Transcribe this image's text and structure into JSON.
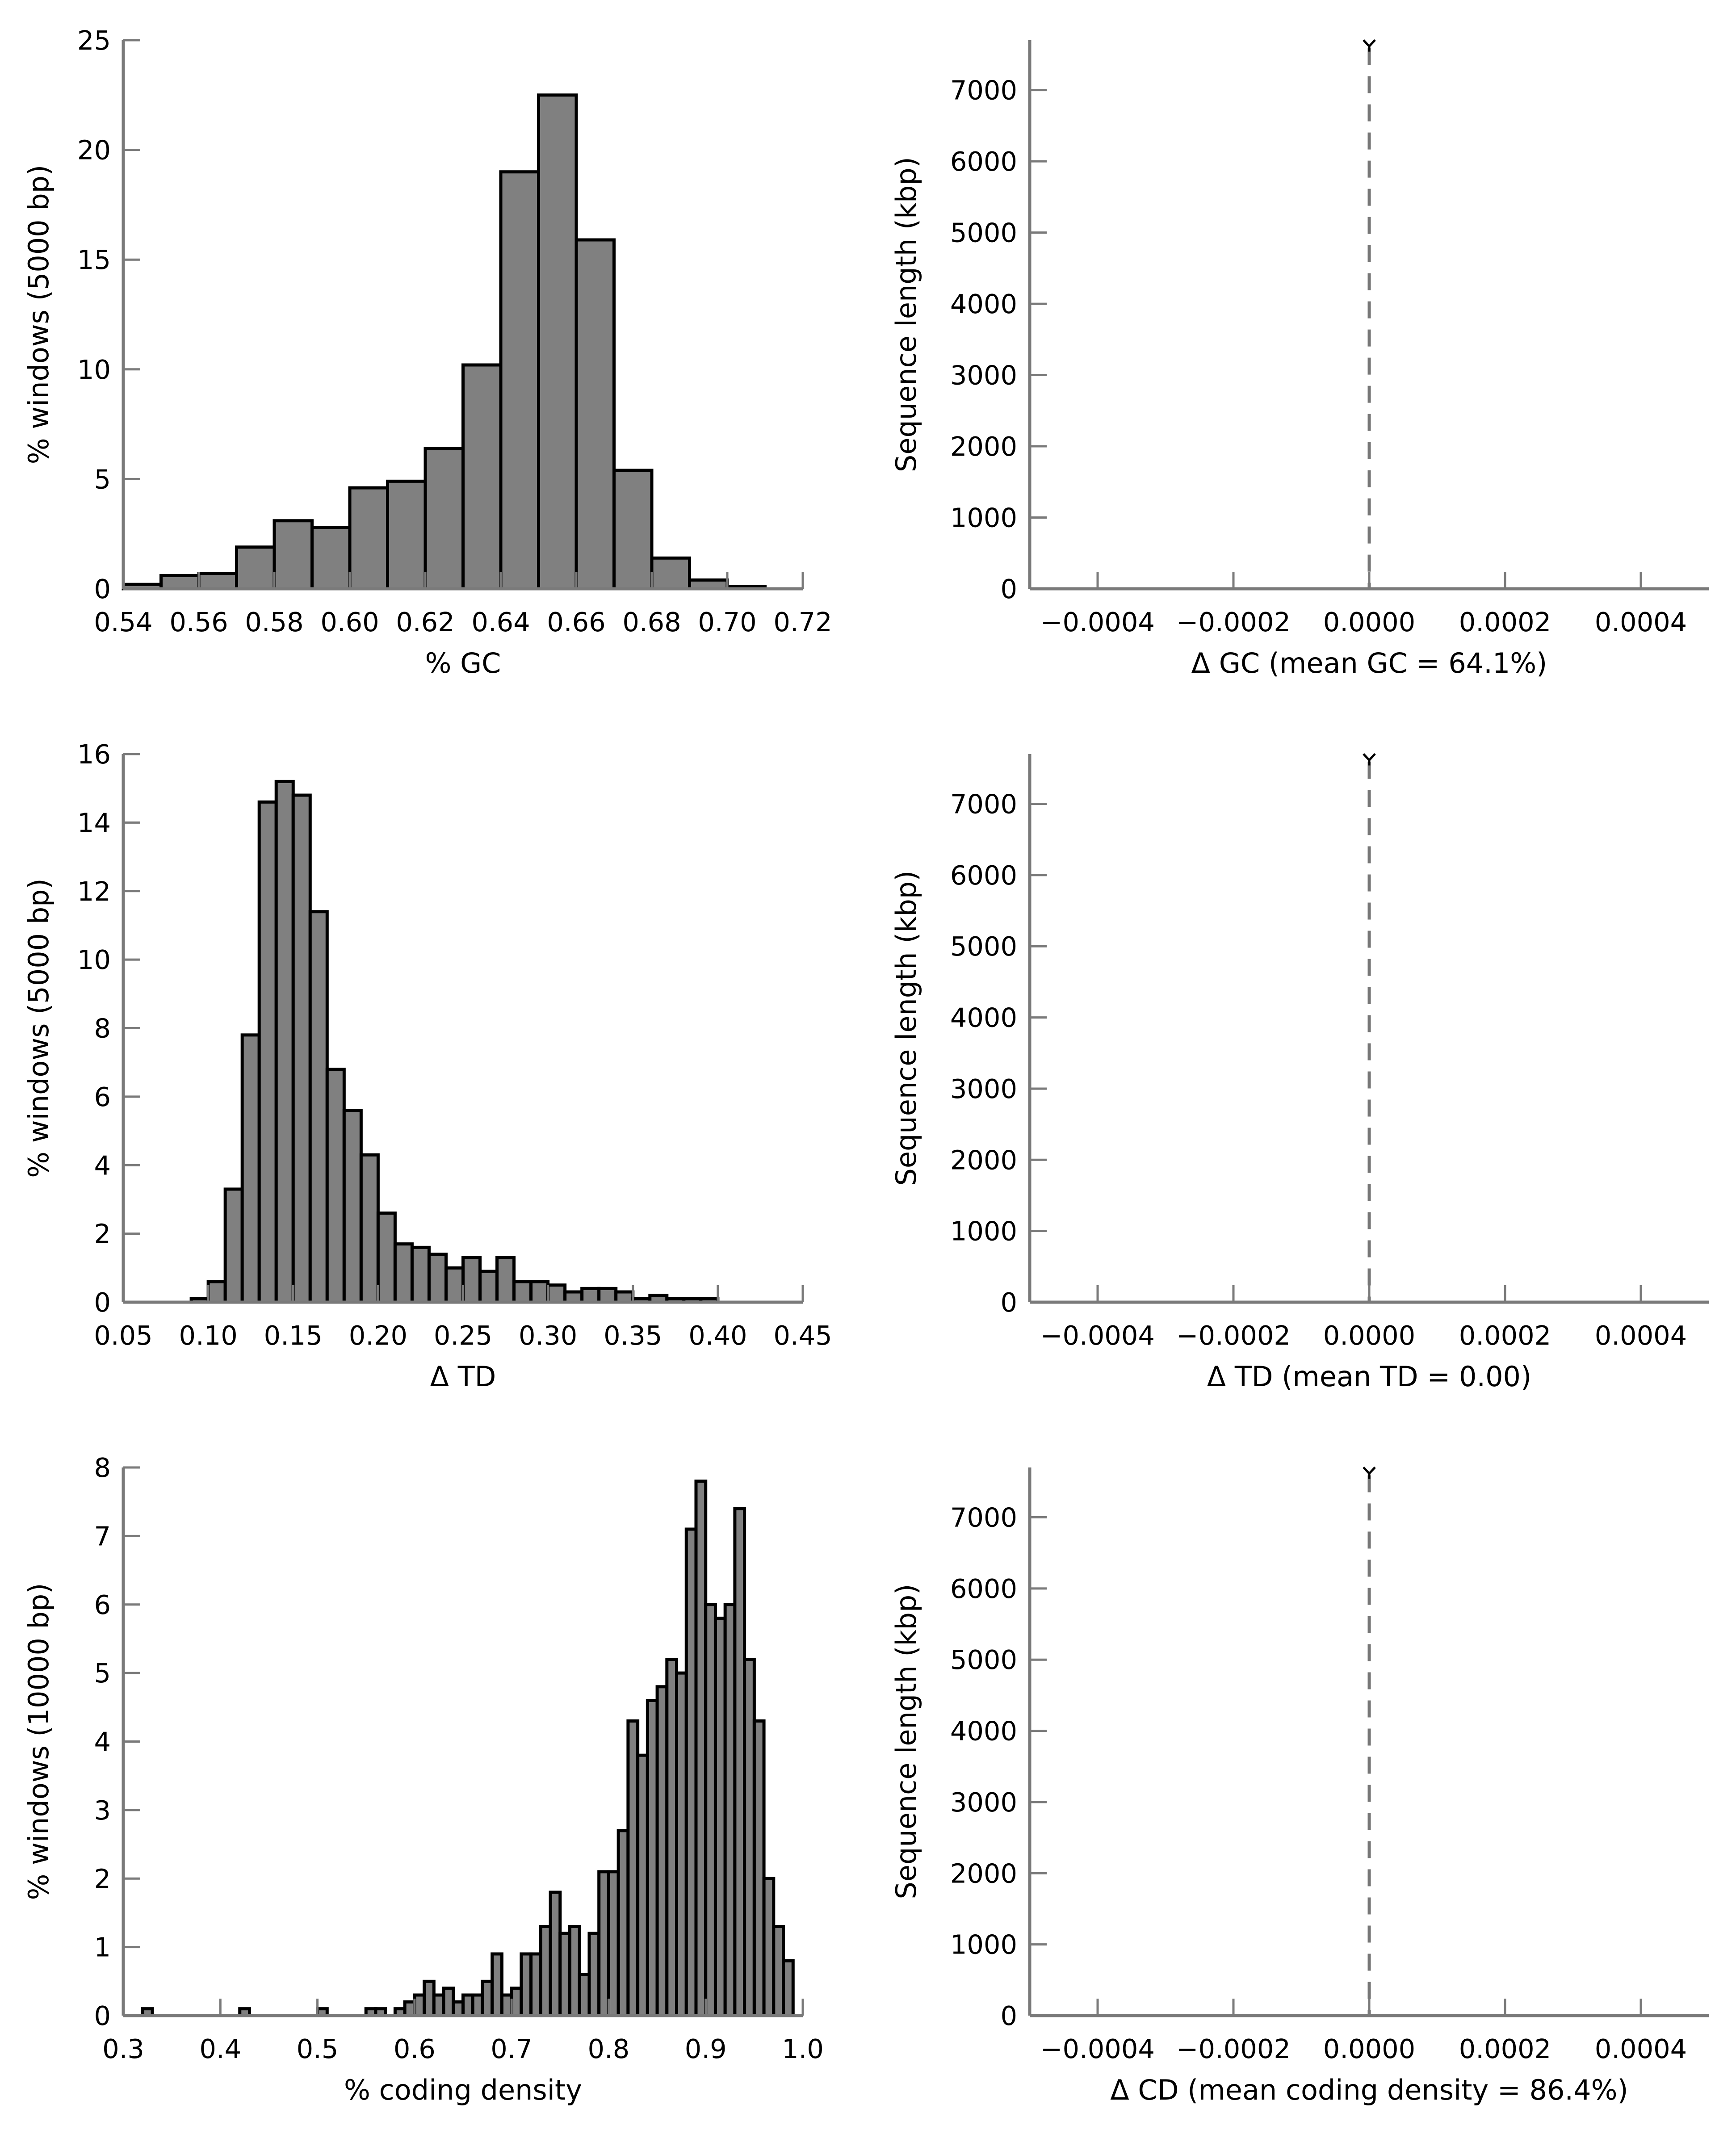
{
  "chart_data": [
    {
      "type": "bar",
      "xlabel": "% GC",
      "ylabel": "% windows (5000 bp)",
      "xlim": [
        0.54,
        0.72
      ],
      "ylim": [
        0,
        25
      ],
      "xticks": [
        "0.54",
        "0.56",
        "0.58",
        "0.60",
        "0.62",
        "0.64",
        "0.66",
        "0.68",
        "0.70",
        "0.72"
      ],
      "yticks": [
        "0",
        "5",
        "10",
        "15",
        "20",
        "25"
      ],
      "bin_edges": [
        0.54,
        0.55,
        0.56,
        0.57,
        0.58,
        0.59,
        0.6,
        0.61,
        0.62,
        0.63,
        0.64,
        0.65,
        0.66,
        0.67,
        0.68,
        0.69,
        0.7,
        0.71
      ],
      "values": [
        0.2,
        0.6,
        0.7,
        1.9,
        3.1,
        2.8,
        4.6,
        4.9,
        6.4,
        10.2,
        19.0,
        22.5,
        15.9,
        5.4,
        1.4,
        0.4,
        0.1
      ]
    },
    {
      "type": "line",
      "xlabel": "Δ GC (mean GC = 64.1%)",
      "ylabel": "Sequence length (kbp)",
      "xlim": [
        -0.0005,
        0.0005
      ],
      "ylim": [
        0,
        7700
      ],
      "xticks": [
        "−0.0004",
        "−0.0002",
        "0.0000",
        "0.0002",
        "0.0004"
      ],
      "xtick_values": [
        -0.0004,
        -0.0002,
        0.0,
        0.0002,
        0.0004
      ],
      "yticks": [
        "0",
        "1000",
        "2000",
        "3000",
        "4000",
        "5000",
        "6000",
        "7000"
      ],
      "reference_line_x": 0.0,
      "point": {
        "x": 0.0,
        "y": 7640
      }
    },
    {
      "type": "bar",
      "xlabel": "Δ TD",
      "ylabel": "% windows (5000 bp)",
      "xlim": [
        0.05,
        0.45
      ],
      "ylim": [
        0,
        16
      ],
      "xticks": [
        "0.05",
        "0.10",
        "0.15",
        "0.20",
        "0.25",
        "0.30",
        "0.35",
        "0.40",
        "0.45"
      ],
      "yticks": [
        "0",
        "2",
        "4",
        "6",
        "8",
        "10",
        "12",
        "14",
        "16"
      ],
      "bin_edges": [
        0.09,
        0.1,
        0.11,
        0.12,
        0.13,
        0.14,
        0.15,
        0.16,
        0.17,
        0.18,
        0.19,
        0.2,
        0.21,
        0.22,
        0.23,
        0.24,
        0.25,
        0.26,
        0.27,
        0.28,
        0.29,
        0.3,
        0.31,
        0.32,
        0.33,
        0.34,
        0.35,
        0.36,
        0.37,
        0.38,
        0.39,
        0.4
      ],
      "values": [
        0.1,
        0.6,
        3.3,
        7.8,
        14.6,
        15.2,
        14.8,
        11.4,
        6.8,
        5.6,
        4.3,
        2.6,
        1.7,
        1.6,
        1.4,
        1.0,
        1.3,
        0.9,
        1.3,
        0.6,
        0.6,
        0.5,
        0.3,
        0.4,
        0.4,
        0.3,
        0.1,
        0.2,
        0.1,
        0.1,
        0.1
      ]
    },
    {
      "type": "line",
      "xlabel": "Δ TD (mean TD = 0.00)",
      "ylabel": "Sequence length (kbp)",
      "xlim": [
        -0.0005,
        0.0005
      ],
      "ylim": [
        0,
        7700
      ],
      "xticks": [
        "−0.0004",
        "−0.0002",
        "0.0000",
        "0.0002",
        "0.0004"
      ],
      "xtick_values": [
        -0.0004,
        -0.0002,
        0.0,
        0.0002,
        0.0004
      ],
      "yticks": [
        "0",
        "1000",
        "2000",
        "3000",
        "4000",
        "5000",
        "6000",
        "7000"
      ],
      "reference_line_x": 0.0,
      "point": {
        "x": 0.0,
        "y": 7640
      }
    },
    {
      "type": "bar",
      "xlabel": "% coding density",
      "ylabel": "% windows (10000 bp)",
      "xlim": [
        0.3,
        1.0
      ],
      "ylim": [
        0,
        8
      ],
      "xticks": [
        "0.3",
        "0.4",
        "0.5",
        "0.6",
        "0.7",
        "0.8",
        "0.9",
        "1.0"
      ],
      "yticks": [
        "0",
        "1",
        "2",
        "3",
        "4",
        "5",
        "6",
        "7",
        "8"
      ],
      "bin_width": 0.01,
      "bins": [
        [
          0.32,
          0.1
        ],
        [
          0.42,
          0.1
        ],
        [
          0.5,
          0.1
        ],
        [
          0.55,
          0.1
        ],
        [
          0.56,
          0.1
        ],
        [
          0.58,
          0.1
        ],
        [
          0.59,
          0.2
        ],
        [
          0.6,
          0.3
        ],
        [
          0.61,
          0.5
        ],
        [
          0.62,
          0.3
        ],
        [
          0.63,
          0.4
        ],
        [
          0.64,
          0.2
        ],
        [
          0.65,
          0.3
        ],
        [
          0.66,
          0.3
        ],
        [
          0.67,
          0.5
        ],
        [
          0.68,
          0.9
        ],
        [
          0.69,
          0.3
        ],
        [
          0.7,
          0.4
        ],
        [
          0.71,
          0.9
        ],
        [
          0.72,
          0.9
        ],
        [
          0.73,
          1.3
        ],
        [
          0.74,
          1.8
        ],
        [
          0.75,
          1.2
        ],
        [
          0.76,
          1.3
        ],
        [
          0.77,
          0.6
        ],
        [
          0.78,
          1.2
        ],
        [
          0.79,
          2.1
        ],
        [
          0.8,
          2.1
        ],
        [
          0.81,
          2.7
        ],
        [
          0.82,
          4.3
        ],
        [
          0.83,
          3.8
        ],
        [
          0.84,
          4.6
        ],
        [
          0.85,
          4.8
        ],
        [
          0.86,
          5.2
        ],
        [
          0.87,
          5.0
        ],
        [
          0.88,
          7.1
        ],
        [
          0.89,
          7.8
        ],
        [
          0.9,
          6.0
        ],
        [
          0.91,
          5.8
        ],
        [
          0.92,
          6.0
        ],
        [
          0.93,
          7.4
        ],
        [
          0.94,
          5.2
        ],
        [
          0.95,
          4.3
        ],
        [
          0.96,
          2.0
        ],
        [
          0.97,
          1.3
        ],
        [
          0.98,
          0.8
        ]
      ]
    },
    {
      "type": "line",
      "xlabel": "Δ CD (mean coding density = 86.4%)",
      "ylabel": "Sequence length (kbp)",
      "xlim": [
        -0.0005,
        0.0005
      ],
      "ylim": [
        0,
        7700
      ],
      "xticks": [
        "−0.0004",
        "−0.0002",
        "0.0000",
        "0.0002",
        "0.0004"
      ],
      "xtick_values": [
        -0.0004,
        -0.0002,
        0.0,
        0.0002,
        0.0004
      ],
      "yticks": [
        "0",
        "1000",
        "2000",
        "3000",
        "4000",
        "5000",
        "6000",
        "7000"
      ],
      "reference_line_x": 0.0,
      "point": {
        "x": 0.0,
        "y": 7640
      }
    }
  ]
}
